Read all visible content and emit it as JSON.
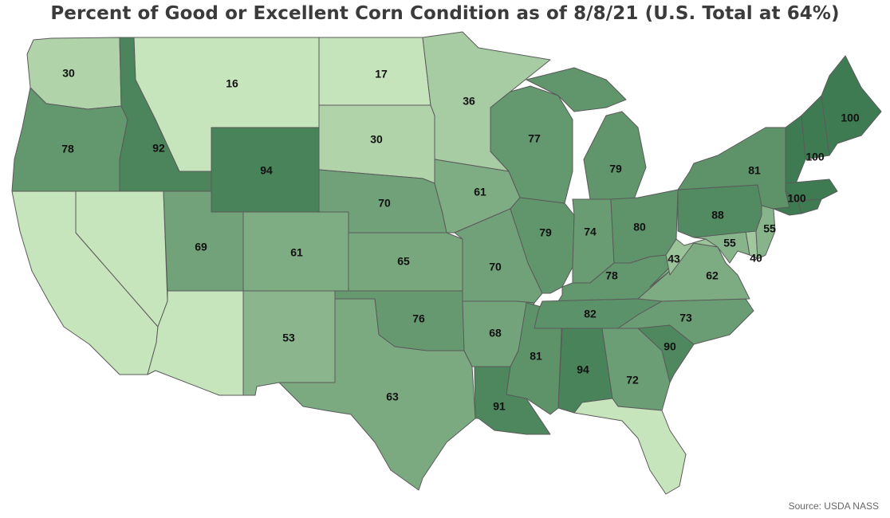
{
  "title": "Percent of Good or Excellent Corn Condition as of 8/8/21 (U.S. Total at 64%)",
  "source": "Source: USDA NASS",
  "color_scale": {
    "low": "#c7e5bc",
    "high": "#3f7b52",
    "min": 16,
    "max": 100
  },
  "states": [
    {
      "id": "WA",
      "value": 30
    },
    {
      "id": "OR",
      "value": 78
    },
    {
      "id": "CA",
      "value": null
    },
    {
      "id": "NV",
      "value": null
    },
    {
      "id": "ID",
      "value": 92
    },
    {
      "id": "MT",
      "value": 16
    },
    {
      "id": "WY",
      "value": 94
    },
    {
      "id": "UT",
      "value": 69
    },
    {
      "id": "AZ",
      "value": null
    },
    {
      "id": "CO",
      "value": 61
    },
    {
      "id": "NM",
      "value": 53
    },
    {
      "id": "ND",
      "value": 17
    },
    {
      "id": "SD",
      "value": 30
    },
    {
      "id": "NE",
      "value": 70
    },
    {
      "id": "KS",
      "value": 65
    },
    {
      "id": "OK",
      "value": 76
    },
    {
      "id": "TX",
      "value": 63
    },
    {
      "id": "MN",
      "value": 36
    },
    {
      "id": "IA",
      "value": 61
    },
    {
      "id": "MO",
      "value": 70
    },
    {
      "id": "AR",
      "value": 68
    },
    {
      "id": "LA",
      "value": 91
    },
    {
      "id": "WI",
      "value": 77
    },
    {
      "id": "IL",
      "value": 79
    },
    {
      "id": "MS",
      "value": 81
    },
    {
      "id": "MI",
      "value": 79
    },
    {
      "id": "IN",
      "value": 74
    },
    {
      "id": "KY",
      "value": 78
    },
    {
      "id": "TN",
      "value": 82
    },
    {
      "id": "AL",
      "value": 94
    },
    {
      "id": "OH",
      "value": 80
    },
    {
      "id": "GA",
      "value": 72
    },
    {
      "id": "FL",
      "value": null
    },
    {
      "id": "SC",
      "value": 90
    },
    {
      "id": "NC",
      "value": 73
    },
    {
      "id": "VA",
      "value": 62
    },
    {
      "id": "WV",
      "value": 43
    },
    {
      "id": "MD",
      "value": 55
    },
    {
      "id": "DE",
      "value": 40
    },
    {
      "id": "PA",
      "value": 88
    },
    {
      "id": "NJ",
      "value": 55
    },
    {
      "id": "NY",
      "value": 81
    },
    {
      "id": "VT",
      "value": 100
    },
    {
      "id": "NH",
      "value": 100
    },
    {
      "id": "ME",
      "value": 100
    },
    {
      "id": "MA",
      "value": 100
    },
    {
      "id": "CT",
      "value": 100
    },
    {
      "id": "RI",
      "value": 100
    }
  ],
  "labels": [
    {
      "id": "WA",
      "text": "30"
    },
    {
      "id": "OR",
      "text": "78"
    },
    {
      "id": "ID",
      "text": "92"
    },
    {
      "id": "MT",
      "text": "16"
    },
    {
      "id": "WY",
      "text": "94"
    },
    {
      "id": "UT",
      "text": "69"
    },
    {
      "id": "CO",
      "text": "61"
    },
    {
      "id": "NM",
      "text": "53"
    },
    {
      "id": "ND",
      "text": "17"
    },
    {
      "id": "SD",
      "text": "30"
    },
    {
      "id": "NE",
      "text": "70"
    },
    {
      "id": "KS",
      "text": "65"
    },
    {
      "id": "OK",
      "text": "76"
    },
    {
      "id": "TX",
      "text": "63"
    },
    {
      "id": "MN",
      "text": "36"
    },
    {
      "id": "IA",
      "text": "61"
    },
    {
      "id": "MO",
      "text": "70"
    },
    {
      "id": "AR",
      "text": "68"
    },
    {
      "id": "LA",
      "text": "91"
    },
    {
      "id": "WI",
      "text": "77"
    },
    {
      "id": "IL",
      "text": "79"
    },
    {
      "id": "MS",
      "text": "81"
    },
    {
      "id": "MI",
      "text": "79"
    },
    {
      "id": "IN",
      "text": "74"
    },
    {
      "id": "KY",
      "text": "78"
    },
    {
      "id": "TN",
      "text": "82"
    },
    {
      "id": "AL",
      "text": "94"
    },
    {
      "id": "OH",
      "text": "80"
    },
    {
      "id": "GA",
      "text": "72"
    },
    {
      "id": "SC",
      "text": "90"
    },
    {
      "id": "NC",
      "text": "73"
    },
    {
      "id": "VA",
      "text": "62"
    },
    {
      "id": "WV",
      "text": "43"
    },
    {
      "id": "MD",
      "text": "55"
    },
    {
      "id": "DE",
      "text": "40"
    },
    {
      "id": "PA",
      "text": "88"
    },
    {
      "id": "NJ",
      "text": "55"
    },
    {
      "id": "NY",
      "text": "81"
    },
    {
      "id": "VT",
      "text": "100"
    },
    {
      "id": "ME",
      "text": "100"
    },
    {
      "id": "MA",
      "text": "100"
    }
  ]
}
